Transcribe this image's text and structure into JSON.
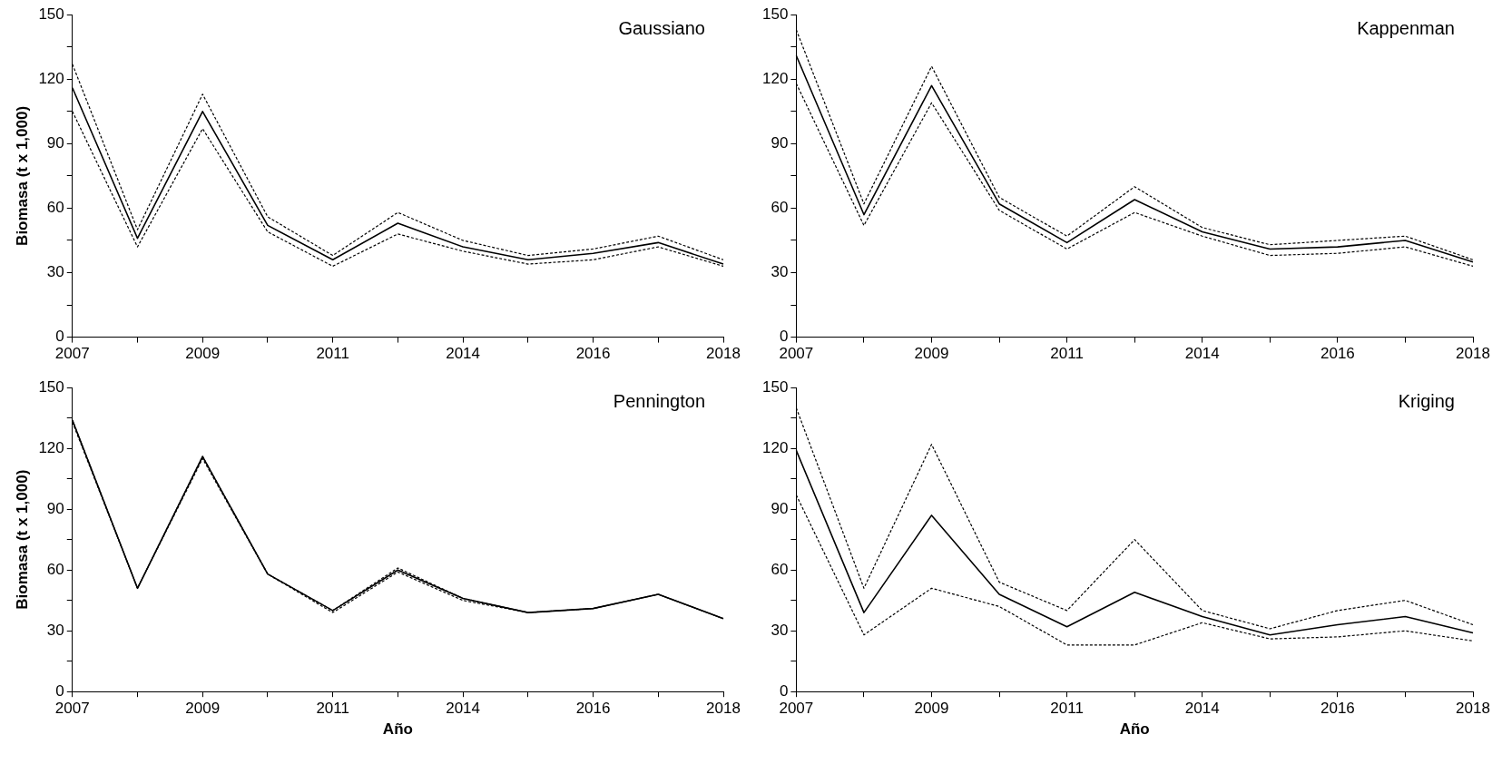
{
  "chart_data": [
    {
      "type": "line",
      "title": "Gaussiano",
      "ylabel": "Biomasa (t x 1,000)",
      "categories": [
        "2007",
        null,
        "2009",
        null,
        "2011",
        null,
        "2014",
        null,
        "2016",
        null,
        "2018"
      ],
      "ylim": [
        0,
        150
      ],
      "yticks": [
        0,
        {
          "value": 15,
          "label": null
        },
        30,
        {
          "value": 45,
          "label": null
        },
        60,
        {
          "value": 75,
          "label": null
        },
        90,
        {
          "value": 105,
          "label": null
        },
        120,
        {
          "value": 135,
          "label": null
        },
        150
      ],
      "grid": false,
      "legend": false,
      "series": [
        {
          "color": "#000000",
          "line_style": "solid",
          "values": [
            116,
            46,
            105,
            52,
            36,
            53,
            42,
            36,
            39,
            44,
            34
          ]
        },
        {
          "color": "#000000",
          "line_style": "dashed",
          "values": [
            127,
            50,
            113,
            56,
            38,
            58,
            45,
            38,
            41,
            47,
            36
          ]
        },
        {
          "color": "#000000",
          "line_style": "dashed",
          "values": [
            105,
            42,
            97,
            49,
            33,
            48,
            40,
            34,
            36,
            42,
            33
          ]
        }
      ]
    },
    {
      "type": "line",
      "title": "Kappenman",
      "categories": [
        "2007",
        null,
        "2009",
        null,
        "2011",
        null,
        "2014",
        null,
        "2016",
        null,
        "2018"
      ],
      "ylim": [
        0,
        150
      ],
      "yticks": [
        0,
        {
          "value": 15,
          "label": null
        },
        30,
        {
          "value": 45,
          "label": null
        },
        60,
        {
          "value": 75,
          "label": null
        },
        90,
        {
          "value": 105,
          "label": null
        },
        120,
        {
          "value": 135,
          "label": null
        },
        150
      ],
      "grid": false,
      "legend": false,
      "series": [
        {
          "color": "#000000",
          "line_style": "solid",
          "values": [
            131,
            57,
            117,
            62,
            44,
            64,
            49,
            41,
            42,
            45,
            35
          ]
        },
        {
          "color": "#000000",
          "line_style": "dashed",
          "values": [
            143,
            62,
            126,
            65,
            47,
            70,
            51,
            43,
            45,
            47,
            36
          ]
        },
        {
          "color": "#000000",
          "line_style": "dashed",
          "values": [
            118,
            52,
            109,
            59,
            41,
            58,
            47,
            38,
            39,
            42,
            33
          ]
        }
      ]
    },
    {
      "type": "line",
      "title": "Pennington",
      "ylabel": "Biomasa (t x 1,000)",
      "xlabel": "Año",
      "categories": [
        "2007",
        null,
        "2009",
        null,
        "2011",
        null,
        "2014",
        null,
        "2016",
        null,
        "2018"
      ],
      "ylim": [
        0,
        150
      ],
      "yticks": [
        0,
        {
          "value": 15,
          "label": null
        },
        30,
        {
          "value": 45,
          "label": null
        },
        60,
        {
          "value": 75,
          "label": null
        },
        90,
        {
          "value": 105,
          "label": null
        },
        120,
        {
          "value": 135,
          "label": null
        },
        150
      ],
      "grid": false,
      "legend": false,
      "series": [
        {
          "color": "#000000",
          "line_style": "solid",
          "values": [
            134,
            51,
            116,
            58,
            40,
            60,
            46,
            39,
            41,
            48,
            36
          ]
        },
        {
          "color": "#000000",
          "line_style": "dashed",
          "values": [
            134,
            51,
            116,
            58,
            40,
            61,
            46,
            39,
            41,
            48,
            36
          ]
        },
        {
          "color": "#000000",
          "line_style": "dashed",
          "values": [
            133,
            51,
            115,
            58,
            39,
            59,
            45,
            39,
            41,
            48,
            36
          ]
        }
      ]
    },
    {
      "type": "line",
      "title": "Kriging",
      "xlabel": "Año",
      "categories": [
        "2007",
        null,
        "2009",
        null,
        "2011",
        null,
        "2014",
        null,
        "2016",
        null,
        "2018"
      ],
      "ylim": [
        0,
        150
      ],
      "yticks": [
        0,
        {
          "value": 15,
          "label": null
        },
        30,
        {
          "value": 45,
          "label": null
        },
        60,
        {
          "value": 75,
          "label": null
        },
        90,
        {
          "value": 105,
          "label": null
        },
        120,
        {
          "value": 135,
          "label": null
        },
        150
      ],
      "grid": false,
      "legend": false,
      "series": [
        {
          "color": "#000000",
          "line_style": "solid",
          "values": [
            119,
            39,
            87,
            48,
            32,
            49,
            37,
            28,
            33,
            37,
            29
          ]
        },
        {
          "color": "#000000",
          "line_style": "dashed",
          "values": [
            140,
            51,
            122,
            54,
            40,
            75,
            40,
            31,
            40,
            45,
            33
          ]
        },
        {
          "color": "#000000",
          "line_style": "dashed",
          "values": [
            97,
            28,
            51,
            42,
            23,
            23,
            34,
            26,
            27,
            30,
            25
          ]
        }
      ]
    }
  ]
}
